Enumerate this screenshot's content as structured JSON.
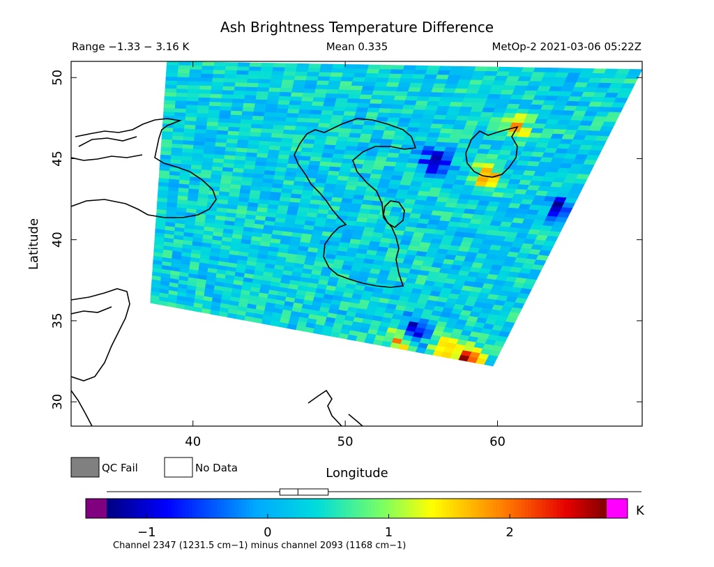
{
  "chart_data": {
    "type": "heatmap",
    "title": "Ash Brightness Temperature Difference",
    "range_text": "Range −1.33 − 3.16 K",
    "mean_text": "Mean 0.335",
    "source_text": "MetOp-2 2021-03-06 05:22Z",
    "xlabel": "Longitude",
    "ylabel": "Latitude",
    "xlim": [
      32,
      69.5
    ],
    "ylim": [
      28.5,
      51
    ],
    "x_ticks": [
      40,
      50,
      60
    ],
    "y_ticks": [
      30,
      35,
      40,
      45,
      50
    ],
    "legend": [
      {
        "label": "QC Fail",
        "color": "#808080"
      },
      {
        "label": "No Data",
        "color": "#ffffff"
      }
    ],
    "colorbar": {
      "unit": "K",
      "min": -1.33,
      "max": 2.8,
      "ticks": [
        -1,
        0,
        1,
        2
      ],
      "ticks_text": [
        "−1",
        "0",
        "1",
        "2"
      ],
      "under_color": "#800080",
      "over_color": "#ff00ff",
      "boxplot": {
        "min": -1.33,
        "q1": 0.1,
        "median": 0.25,
        "q3": 0.5,
        "max": 3.16
      },
      "caption": "Channel 2347 (1231.5 cm−1) minus channel 2093 (1168 cm−1)"
    },
    "swath": {
      "top_left": [
        38.3,
        51
      ],
      "top_right": [
        69.5,
        50.5
      ],
      "bottom_left": [
        37.2,
        36.1
      ],
      "bottom_right": [
        59.7,
        32.2
      ],
      "typical_value": 0.3
    },
    "hotspots": [
      {
        "lon": 58.1,
        "lat": 32.6,
        "value": 2.6
      },
      {
        "lon": 56.5,
        "lat": 33.2,
        "value": 1.7
      },
      {
        "lon": 53.6,
        "lat": 33.7,
        "value": 1.8
      },
      {
        "lon": 59.3,
        "lat": 43.9,
        "value": 1.9
      },
      {
        "lon": 61.3,
        "lat": 47.0,
        "value": 1.6
      },
      {
        "lon": 55.9,
        "lat": 44.7,
        "value": -1.3
      },
      {
        "lon": 54.5,
        "lat": 34.4,
        "value": -1.1
      },
      {
        "lon": 64.0,
        "lat": 42.0,
        "value": -0.9
      }
    ],
    "grid": false
  }
}
